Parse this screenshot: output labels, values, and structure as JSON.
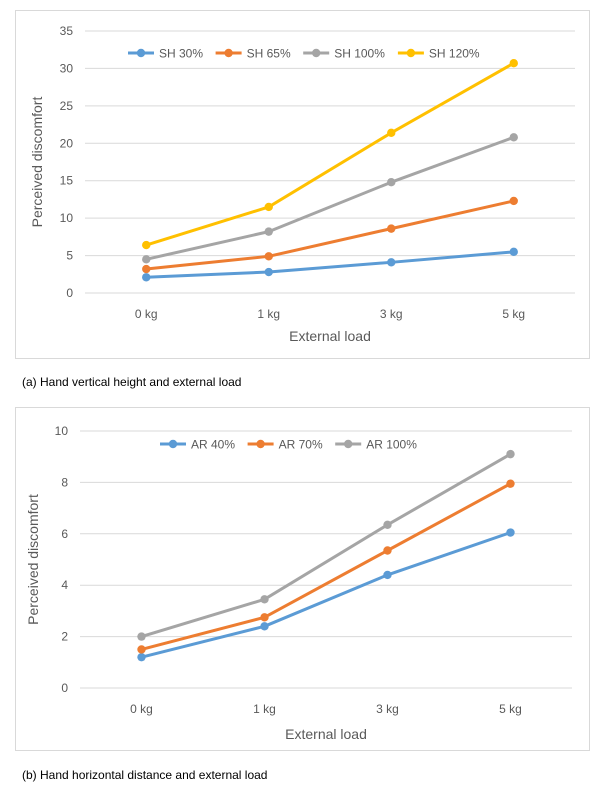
{
  "chart_data": [
    {
      "type": "line",
      "categories": [
        "0 kg",
        "1 kg",
        "3 kg",
        "5 kg"
      ],
      "xlabel": "External load",
      "ylabel": "Perceived discomfort",
      "ylim": [
        0,
        35
      ],
      "yticks": [
        0,
        5,
        10,
        15,
        20,
        25,
        30,
        35
      ],
      "grid": true,
      "legend_position": "top",
      "caption": "(a) Hand vertical height and external load",
      "series": [
        {
          "name": "SH 30%",
          "color": "#5b9bd5",
          "values": [
            2.1,
            2.8,
            4.1,
            5.5
          ]
        },
        {
          "name": "SH 65%",
          "color": "#ed7d31",
          "values": [
            3.2,
            4.9,
            8.6,
            12.3
          ]
        },
        {
          "name": "SH 100%",
          "color": "#a5a5a5",
          "values": [
            4.5,
            8.2,
            14.8,
            20.8
          ]
        },
        {
          "name": "SH 120%",
          "color": "#ffc000",
          "values": [
            6.4,
            11.5,
            21.4,
            30.7
          ]
        }
      ]
    },
    {
      "type": "line",
      "categories": [
        "0 kg",
        "1 kg",
        "3 kg",
        "5 kg"
      ],
      "xlabel": "External load",
      "ylabel": "Perceived discomfort",
      "ylim": [
        0,
        10
      ],
      "yticks": [
        0,
        2,
        4,
        6,
        8,
        10
      ],
      "grid": true,
      "legend_position": "top",
      "caption": "(b) Hand horizontal distance and external load",
      "series": [
        {
          "name": "AR 40%",
          "color": "#5b9bd5",
          "values": [
            1.2,
            2.4,
            4.4,
            6.05
          ]
        },
        {
          "name": "AR 70%",
          "color": "#ed7d31",
          "values": [
            1.5,
            2.75,
            5.35,
            7.95
          ]
        },
        {
          "name": "AR 100%",
          "color": "#a5a5a5",
          "values": [
            2.0,
            3.45,
            6.35,
            9.1
          ]
        }
      ]
    }
  ]
}
